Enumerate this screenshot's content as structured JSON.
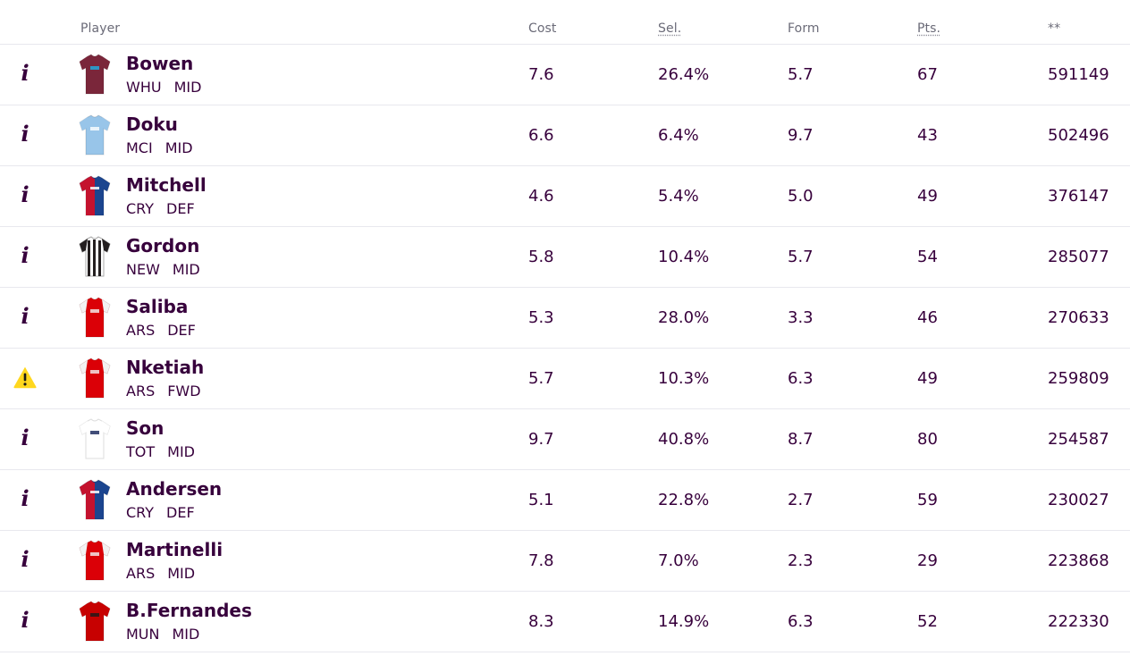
{
  "columns": {
    "player": "Player",
    "cost": "Cost",
    "sel": "Sel.",
    "form": "Form",
    "pts": "Pts.",
    "stat": "**"
  },
  "players": [
    {
      "status_icon": "info-icon",
      "name": "Bowen",
      "team": "WHU",
      "pos": "MID",
      "cost": "7.6",
      "sel": "26.4%",
      "form": "5.7",
      "pts": "67",
      "stat": "591149",
      "kit": {
        "type": "plain",
        "body": "#7a263a",
        "sleeve": "#7a263a",
        "accent": "#1bb1e7"
      }
    },
    {
      "status_icon": "info-icon",
      "name": "Doku",
      "team": "MCI",
      "pos": "MID",
      "cost": "6.6",
      "sel": "6.4%",
      "form": "9.7",
      "pts": "43",
      "stat": "502496",
      "kit": {
        "type": "plain",
        "body": "#98c5e9",
        "sleeve": "#98c5e9",
        "accent": "#ffffff"
      }
    },
    {
      "status_icon": "info-icon",
      "name": "Mitchell",
      "team": "CRY",
      "pos": "DEF",
      "cost": "4.6",
      "sel": "5.4%",
      "form": "5.0",
      "pts": "49",
      "stat": "376147",
      "kit": {
        "type": "half",
        "body": "#1b458f",
        "sleeve": "#c4122e",
        "accent": "#c4122e"
      }
    },
    {
      "status_icon": "info-icon",
      "name": "Gordon",
      "team": "NEW",
      "pos": "MID",
      "cost": "5.8",
      "sel": "10.4%",
      "form": "5.7",
      "pts": "54",
      "stat": "285077",
      "kit": {
        "type": "stripes",
        "body": "#ffffff",
        "sleeve": "#241f20",
        "accent": "#241f20"
      }
    },
    {
      "status_icon": "info-icon",
      "name": "Saliba",
      "team": "ARS",
      "pos": "DEF",
      "cost": "5.3",
      "sel": "28.0%",
      "form": "3.3",
      "pts": "46",
      "stat": "270633",
      "kit": {
        "type": "plain",
        "body": "#db0007",
        "sleeve": "#f2f2f2",
        "accent": "#f2f2f2"
      }
    },
    {
      "status_icon": "warning-icon",
      "name": "Nketiah",
      "team": "ARS",
      "pos": "FWD",
      "cost": "5.7",
      "sel": "10.3%",
      "form": "6.3",
      "pts": "49",
      "stat": "259809",
      "kit": {
        "type": "plain",
        "body": "#db0007",
        "sleeve": "#f2f2f2",
        "accent": "#f2f2f2"
      }
    },
    {
      "status_icon": "info-icon",
      "name": "Son",
      "team": "TOT",
      "pos": "MID",
      "cost": "9.7",
      "sel": "40.8%",
      "form": "8.7",
      "pts": "80",
      "stat": "254587",
      "kit": {
        "type": "plain",
        "body": "#ffffff",
        "sleeve": "#ffffff",
        "accent": "#132257"
      }
    },
    {
      "status_icon": "info-icon",
      "name": "Andersen",
      "team": "CRY",
      "pos": "DEF",
      "cost": "5.1",
      "sel": "22.8%",
      "form": "2.7",
      "pts": "59",
      "stat": "230027",
      "kit": {
        "type": "half",
        "body": "#1b458f",
        "sleeve": "#c4122e",
        "accent": "#c4122e"
      }
    },
    {
      "status_icon": "info-icon",
      "name": "Martinelli",
      "team": "ARS",
      "pos": "MID",
      "cost": "7.8",
      "sel": "7.0%",
      "form": "2.3",
      "pts": "29",
      "stat": "223868",
      "kit": {
        "type": "plain",
        "body": "#db0007",
        "sleeve": "#f2f2f2",
        "accent": "#f2f2f2"
      }
    },
    {
      "status_icon": "info-icon",
      "name": "B.Fernandes",
      "team": "MUN",
      "pos": "MID",
      "cost": "8.3",
      "sel": "14.9%",
      "form": "6.3",
      "pts": "52",
      "stat": "222330",
      "kit": {
        "type": "plain",
        "body": "#c70101",
        "sleeve": "#c70101",
        "accent": "#1a1a1a"
      }
    }
  ],
  "colors": {
    "text": "#37003c",
    "header_text": "#6b6b78",
    "divider": "#e8e8ee",
    "warning": "#ffd71e"
  }
}
